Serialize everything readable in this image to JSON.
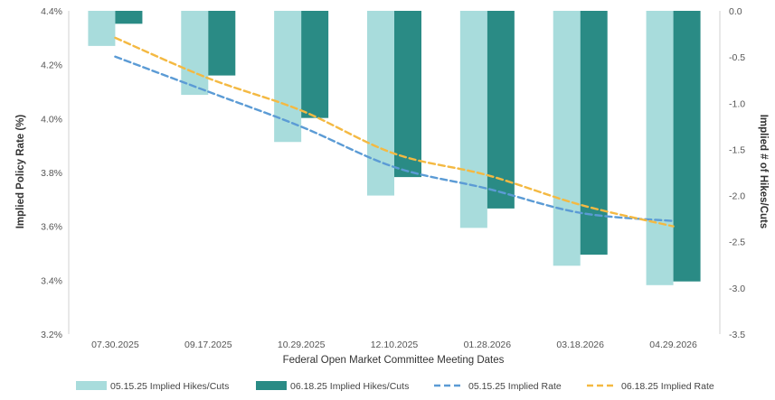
{
  "chart_data": {
    "type": "bar",
    "xlabel": "Federal Open Market Committee Meeting Dates",
    "ylabel_left": "Implied Policy Rate (%)",
    "ylabel_right": "Implied # of Hikes/Cuts",
    "categories": [
      "07.30.2025",
      "09.17.2025",
      "10.29.2025",
      "12.10.2025",
      "01.28.2026",
      "03.18.2026",
      "04.29.2026"
    ],
    "ylim_left": [
      3.2,
      4.4
    ],
    "ylim_right": [
      -3.5,
      0.0
    ],
    "yticks_left": [
      "4.4%",
      "4.2%",
      "4.0%",
      "3.8%",
      "3.6%",
      "3.4%",
      "3.2%"
    ],
    "yticks_right": [
      "0.0",
      "-0.5",
      "-1.0",
      "-1.5",
      "-2.0",
      "-2.5",
      "-3.0",
      "-3.5"
    ],
    "series": [
      {
        "name": "05.15.25 Implied Hikes/Cuts",
        "kind": "bar",
        "axis": "right",
        "color": "#a8dcdc",
        "values": [
          -0.38,
          -0.91,
          -1.42,
          -2.0,
          -2.35,
          -2.76,
          -2.97
        ]
      },
      {
        "name": "06.18.25 Implied Hikes/Cuts",
        "kind": "bar",
        "axis": "right",
        "color": "#2a8b85",
        "values": [
          -0.14,
          -0.7,
          -1.16,
          -1.8,
          -2.14,
          -2.64,
          -2.93
        ]
      },
      {
        "name": "05.15.25 Implied Rate",
        "kind": "line",
        "axis": "left",
        "color": "#5b9bd5",
        "values": [
          4.23,
          4.1,
          3.97,
          3.82,
          3.74,
          3.65,
          3.62
        ]
      },
      {
        "name": "06.18.25 Implied Rate",
        "kind": "line",
        "axis": "left",
        "color": "#f4b942",
        "values": [
          4.3,
          4.15,
          4.03,
          3.87,
          3.79,
          3.68,
          3.6
        ]
      }
    ],
    "grid": false,
    "legend_position": "bottom"
  }
}
